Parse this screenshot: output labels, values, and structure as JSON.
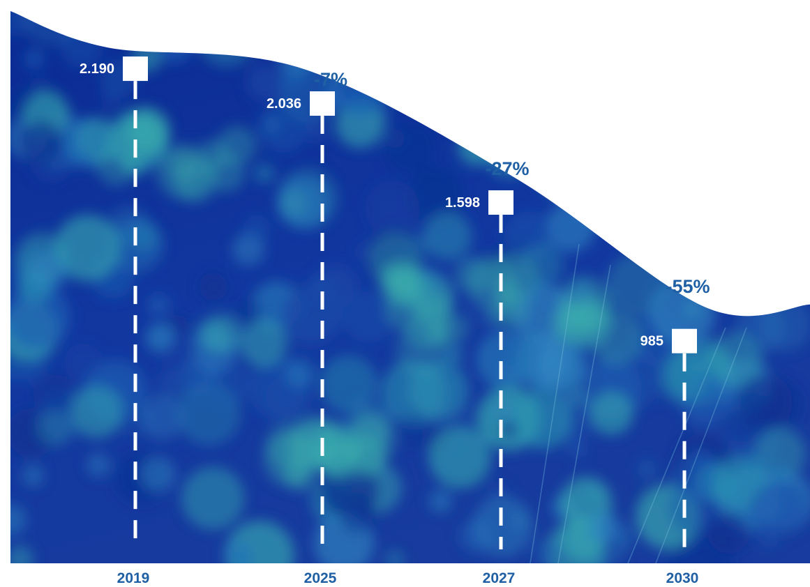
{
  "chart_data": {
    "type": "area",
    "categories": [
      "2019",
      "2025",
      "2027",
      "2030"
    ],
    "values": [
      2190,
      2036,
      1598,
      985
    ],
    "value_labels": [
      "2.190",
      "2.036",
      "1.598",
      "985"
    ],
    "change_labels": [
      "",
      "-7%",
      "-27%",
      "-55%"
    ],
    "ylim": [
      0,
      2400
    ],
    "grid": false,
    "legend": "none",
    "colors": {
      "fill_top": "#0b2f9a",
      "fill_bottom": "#1a3fa8",
      "tree_light": "#2fa6b0",
      "tree_mid": "#1c6fb0",
      "label_blue": "#1f5fa4",
      "marker": "#ffffff"
    }
  }
}
